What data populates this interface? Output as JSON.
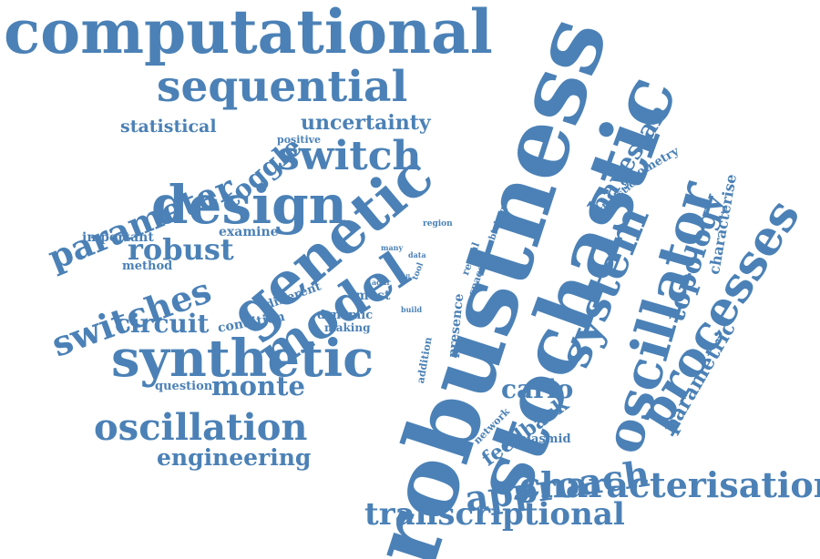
{
  "cloud": {
    "color": "#4b81b6",
    "words": [
      {
        "text": "computational"
      },
      {
        "text": "sequential"
      },
      {
        "text": "uncertainty"
      },
      {
        "text": "statistical"
      },
      {
        "text": "positive"
      },
      {
        "text": "switch"
      },
      {
        "text": "toggle"
      },
      {
        "text": "parameter"
      },
      {
        "text": "design"
      },
      {
        "text": "genetic"
      },
      {
        "text": "robustness"
      },
      {
        "text": "stochastic"
      },
      {
        "text": "oscillator"
      },
      {
        "text": "system"
      },
      {
        "text": "bayesian"
      },
      {
        "text": "cytometry"
      },
      {
        "text": "statistic"
      },
      {
        "text": "characterise"
      },
      {
        "text": "topology"
      },
      {
        "text": "processes"
      },
      {
        "text": "parametric"
      },
      {
        "text": "important"
      },
      {
        "text": "examine"
      },
      {
        "text": "robust"
      },
      {
        "text": "method"
      },
      {
        "text": "switches"
      },
      {
        "text": "model"
      },
      {
        "text": "different"
      },
      {
        "text": "condition"
      },
      {
        "text": "circuit"
      },
      {
        "text": "synthetic"
      },
      {
        "text": "dynamic"
      },
      {
        "text": "making"
      },
      {
        "text": "most"
      },
      {
        "text": "addr"
      },
      {
        "text": "cell"
      },
      {
        "text": "tool"
      },
      {
        "text": "data"
      },
      {
        "text": "many"
      },
      {
        "text": "region"
      },
      {
        "text": "biology"
      },
      {
        "text": "reveal"
      },
      {
        "text": "space"
      },
      {
        "text": "build"
      },
      {
        "text": "presence"
      },
      {
        "text": "addition"
      },
      {
        "text": "question"
      },
      {
        "text": "monte"
      },
      {
        "text": "carlo"
      },
      {
        "text": "oscillation"
      },
      {
        "text": "engineering"
      },
      {
        "text": "network"
      },
      {
        "text": "feedback"
      },
      {
        "text": "plasmid"
      },
      {
        "text": "approach"
      },
      {
        "text": "characterisation"
      },
      {
        "text": "transcriptional"
      }
    ]
  }
}
